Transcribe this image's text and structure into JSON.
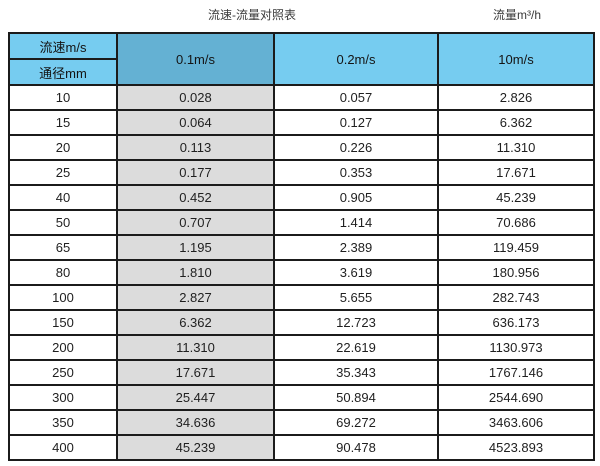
{
  "titles": {
    "main": "流速-流量对照表",
    "right": "流量m³/h"
  },
  "table": {
    "corner_top": "流速m/s",
    "corner_bottom": "通径mm",
    "velocity_columns": [
      "0.1m/s",
      "0.2m/s",
      "10m/s"
    ],
    "rows": [
      {
        "diameter": "10",
        "values": [
          "0.028",
          "0.057",
          "2.826"
        ]
      },
      {
        "diameter": "15",
        "values": [
          "0.064",
          "0.127",
          "6.362"
        ]
      },
      {
        "diameter": "20",
        "values": [
          "0.113",
          "0.226",
          "11.310"
        ]
      },
      {
        "diameter": "25",
        "values": [
          "0.177",
          "0.353",
          "17.671"
        ]
      },
      {
        "diameter": "40",
        "values": [
          "0.452",
          "0.905",
          "45.239"
        ]
      },
      {
        "diameter": "50",
        "values": [
          "0.707",
          "1.414",
          "70.686"
        ]
      },
      {
        "diameter": "65",
        "values": [
          "1.195",
          "2.389",
          "119.459"
        ]
      },
      {
        "diameter": "80",
        "values": [
          "1.810",
          "3.619",
          "180.956"
        ]
      },
      {
        "diameter": "100",
        "values": [
          "2.827",
          "5.655",
          "282.743"
        ]
      },
      {
        "diameter": "150",
        "values": [
          "6.362",
          "12.723",
          "636.173"
        ]
      },
      {
        "diameter": "200",
        "values": [
          "11.310",
          "22.619",
          "1130.973"
        ]
      },
      {
        "diameter": "250",
        "values": [
          "17.671",
          "35.343",
          "1767.146"
        ]
      },
      {
        "diameter": "300",
        "values": [
          "25.447",
          "50.894",
          "2544.690"
        ]
      },
      {
        "diameter": "350",
        "values": [
          "34.636",
          "69.272",
          "3463.606"
        ]
      },
      {
        "diameter": "400",
        "values": [
          "45.239",
          "90.478",
          "4523.893"
        ]
      }
    ]
  },
  "colors": {
    "header_light_blue": "#76ccf0",
    "header_dark_blue": "#64b1d3",
    "shaded_column_gray": "#dcdcdc",
    "border": "#1b1b1b"
  },
  "chart_data": {
    "type": "table",
    "title": "流速-流量对照表",
    "unit_label": "流量m³/h",
    "column_header": "流速m/s",
    "row_header": "通径mm",
    "columns": [
      "0.1m/s",
      "0.2m/s",
      "10m/s"
    ],
    "diameters_mm": [
      10,
      15,
      20,
      25,
      40,
      50,
      65,
      80,
      100,
      150,
      200,
      250,
      300,
      350,
      400
    ],
    "series": [
      {
        "name": "0.1m/s",
        "values": [
          0.028,
          0.064,
          0.113,
          0.177,
          0.452,
          0.707,
          1.195,
          1.81,
          2.827,
          6.362,
          11.31,
          17.671,
          25.447,
          34.636,
          45.239
        ]
      },
      {
        "name": "0.2m/s",
        "values": [
          0.057,
          0.127,
          0.226,
          0.353,
          0.905,
          1.414,
          2.389,
          3.619,
          5.655,
          12.723,
          22.619,
          35.343,
          50.894,
          69.272,
          90.478
        ]
      },
      {
        "name": "10m/s",
        "values": [
          2.826,
          6.362,
          11.31,
          17.671,
          45.239,
          70.686,
          119.459,
          180.956,
          282.743,
          636.173,
          1130.973,
          1767.146,
          2544.69,
          3463.606,
          4523.893
        ]
      }
    ]
  }
}
